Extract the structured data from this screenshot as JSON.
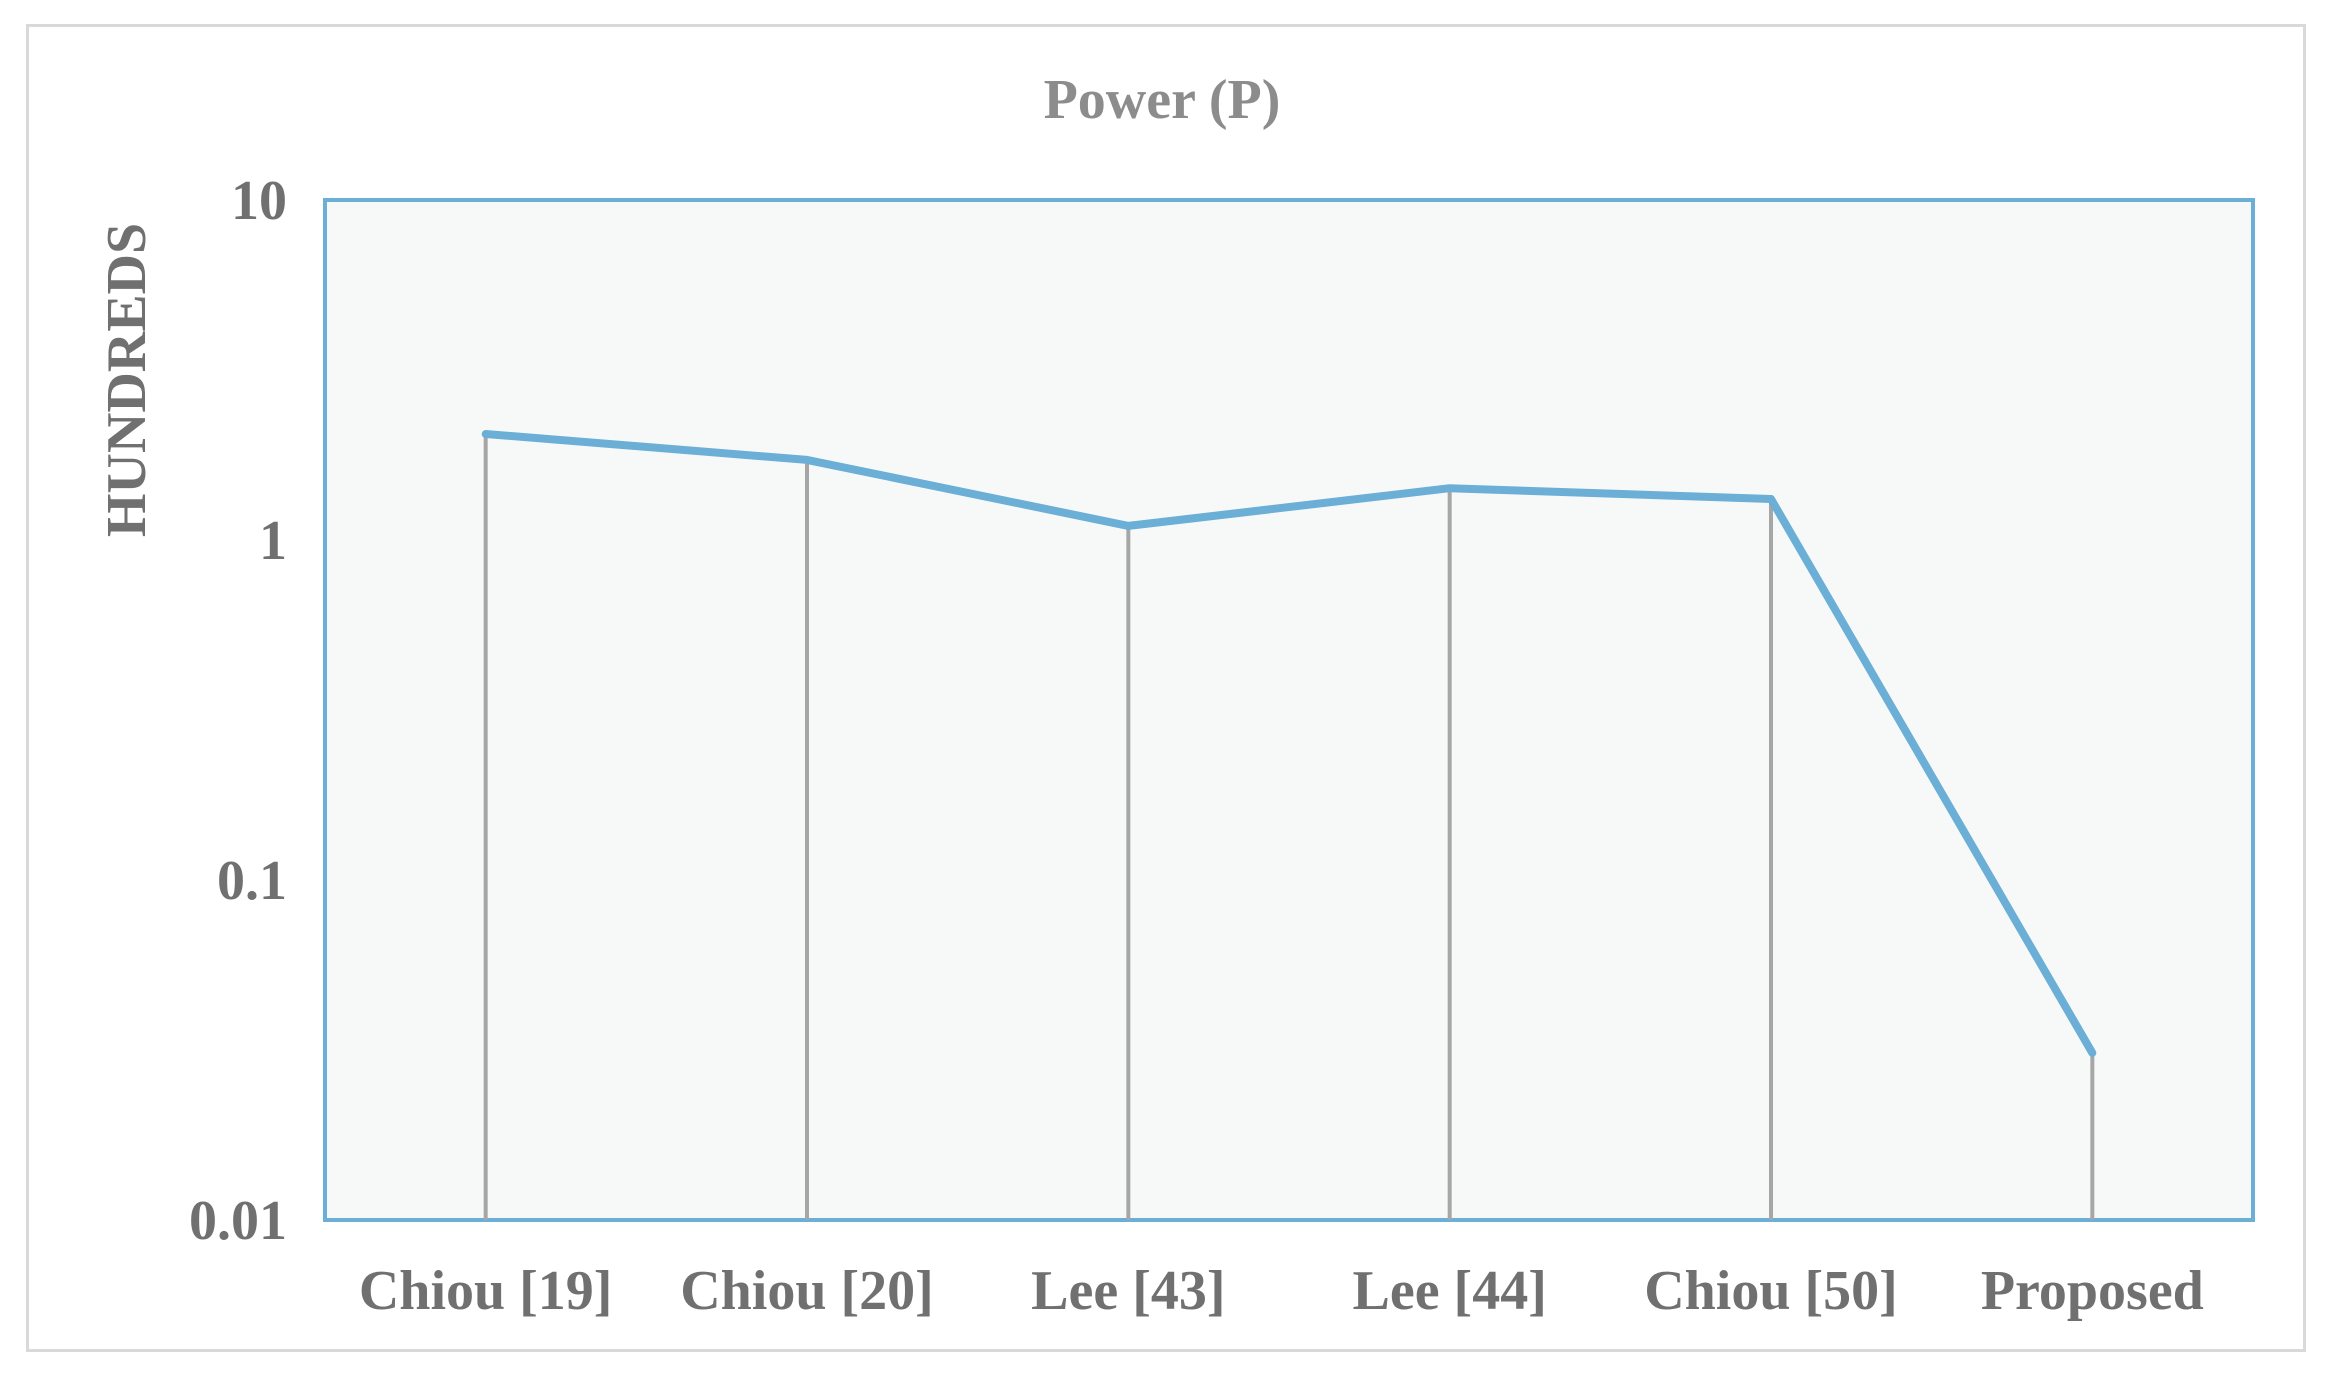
{
  "chart_data": {
    "type": "line",
    "title": "Power (P)",
    "xlabel": "",
    "ylabel": "HUNDREDS",
    "yscale": "log",
    "ylim": [
      0.01,
      10
    ],
    "y_ticks": [
      "10",
      "1",
      "0.1",
      "0.01"
    ],
    "y_tick_values": [
      10,
      1,
      0.1,
      0.01
    ],
    "categories": [
      "Chiou [19]",
      "Chiou [20]",
      "Lee [43]",
      "Lee [44]",
      "Chiou [50]",
      "Proposed"
    ],
    "series": [
      {
        "values": [
          2.05,
          1.72,
          1.1,
          1.42,
          1.32,
          0.031
        ]
      }
    ],
    "drop_lines": true,
    "grid": false,
    "legend": "none",
    "colors": {
      "line": "#6baed6",
      "drop_line": "#a6a6a6",
      "plot_background": "#f7f9f9",
      "plot_border": "#6baed6"
    }
  }
}
